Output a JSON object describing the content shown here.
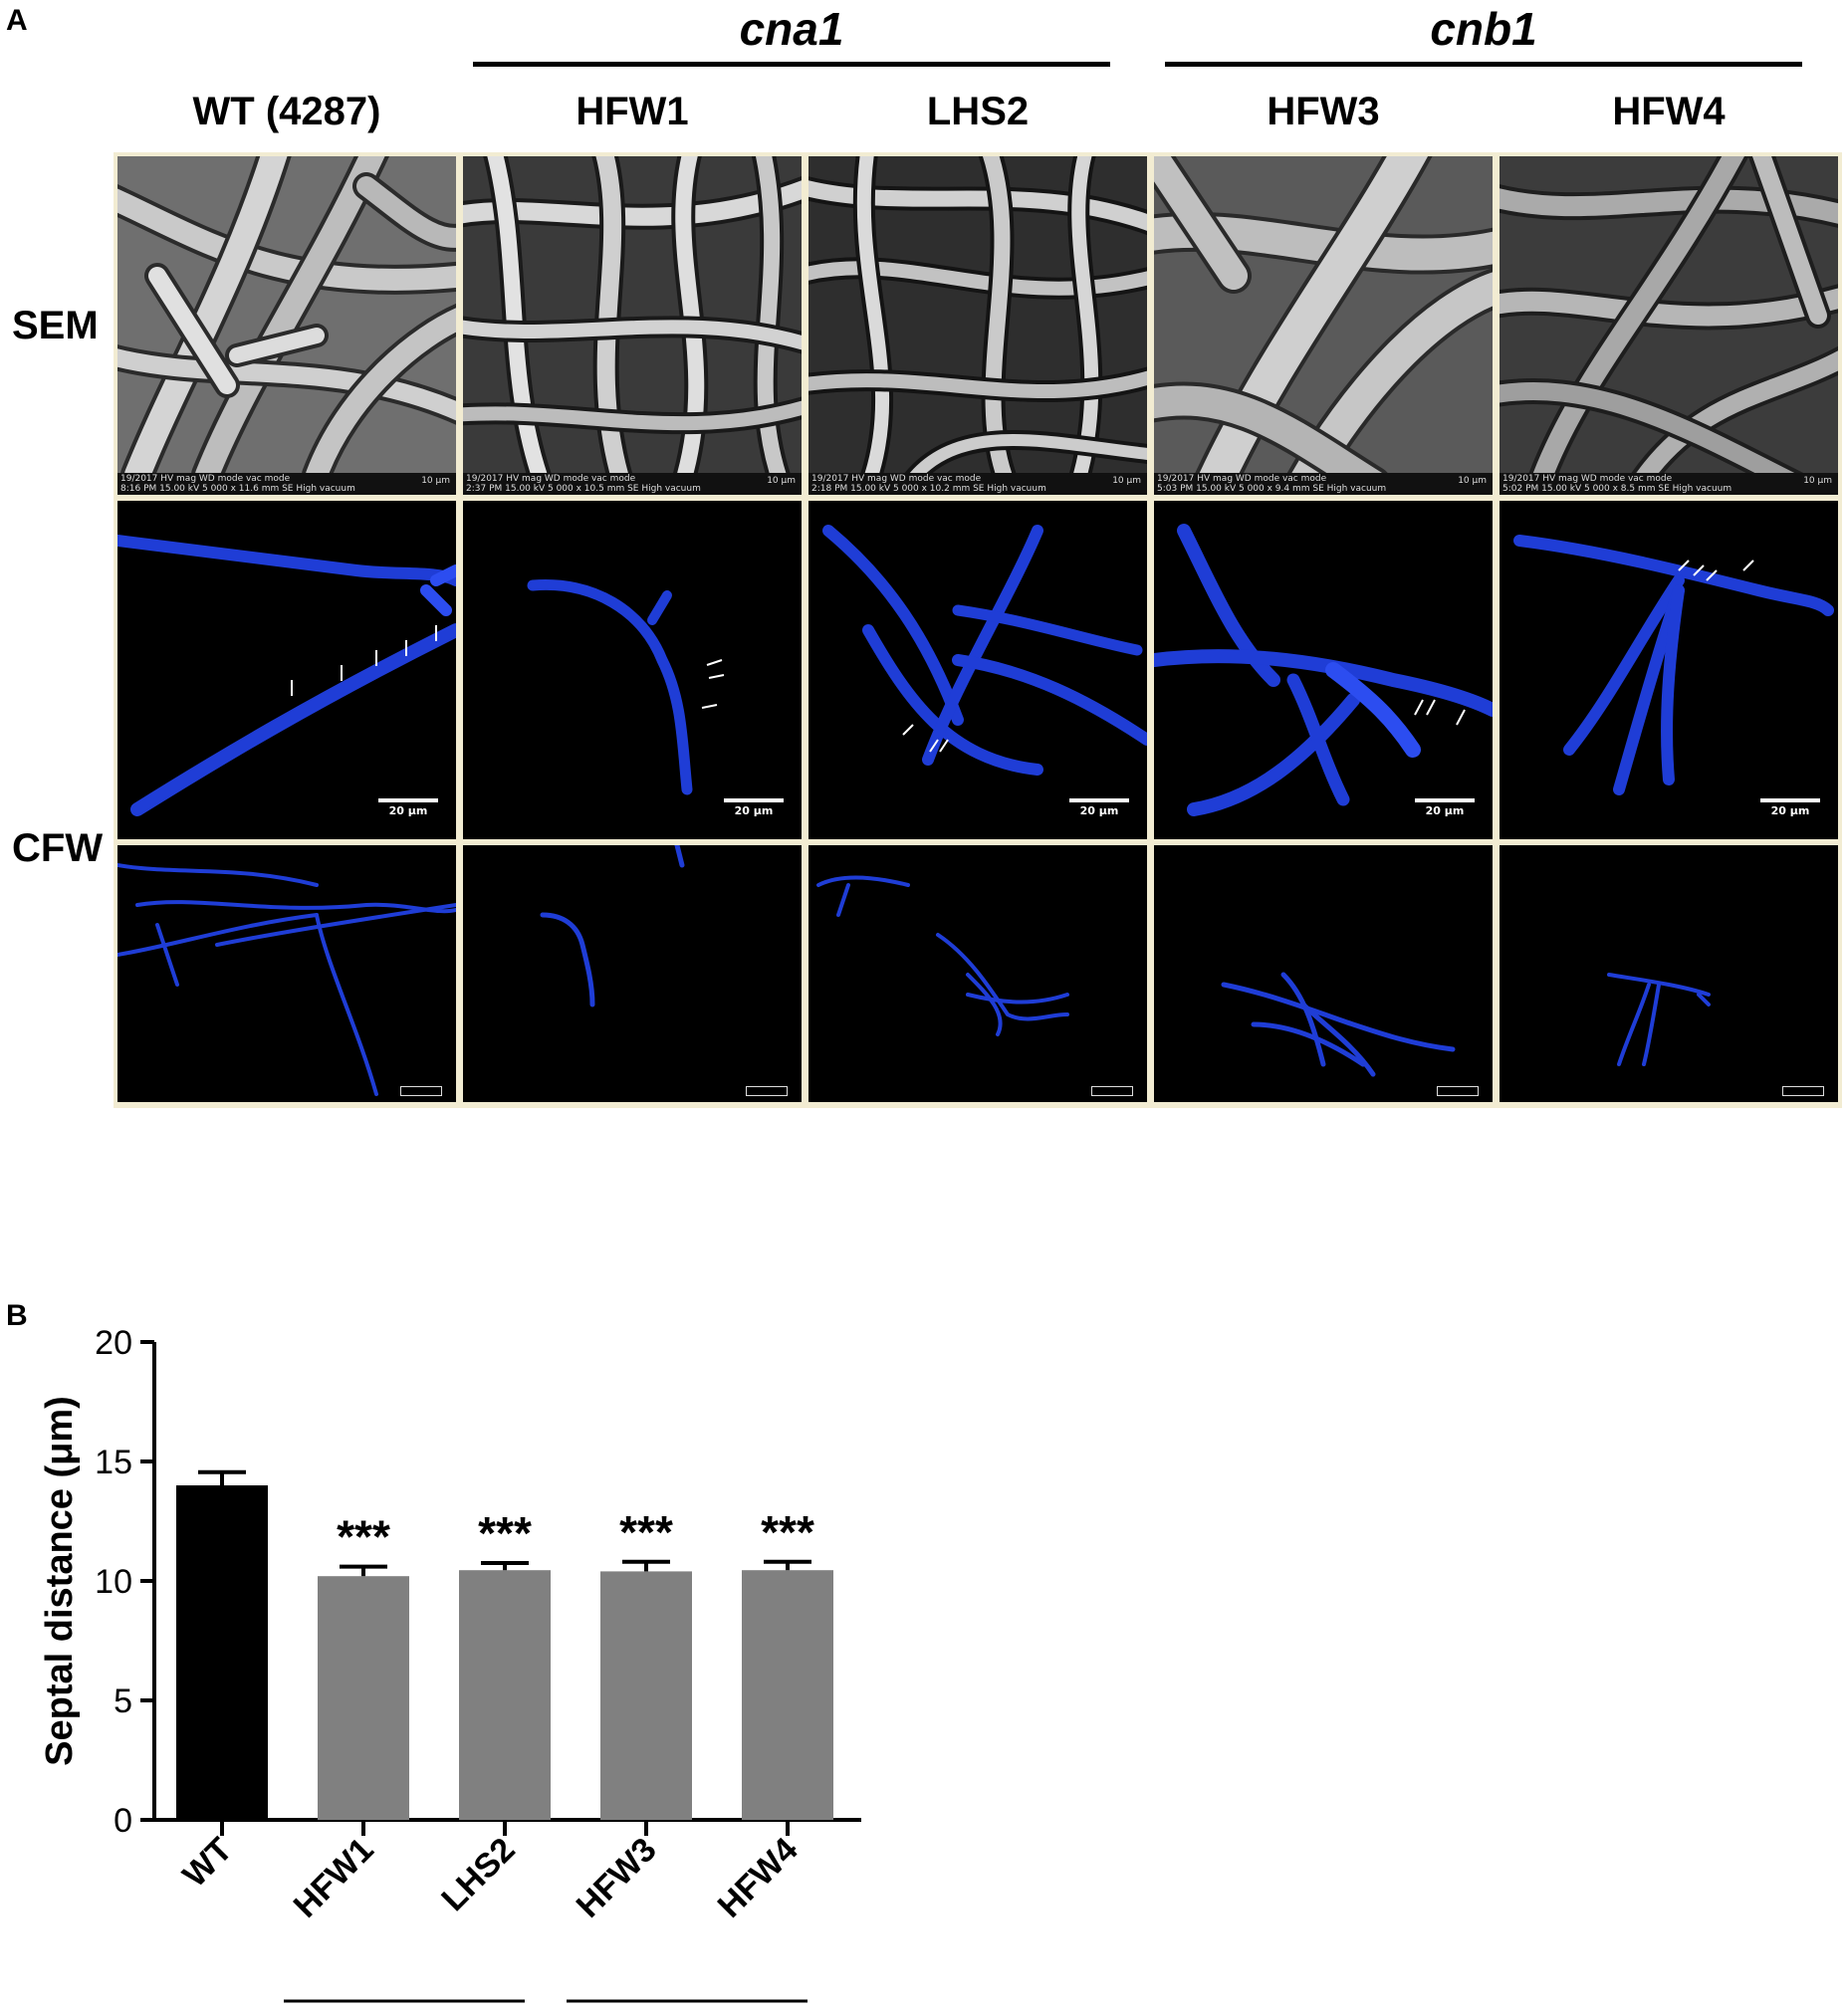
{
  "panel_a": {
    "letter": "A",
    "groups": [
      {
        "label": "cna1"
      },
      {
        "label": "cnb1"
      }
    ],
    "columns": [
      "WT (4287)",
      "HFW1",
      "LHS2",
      "HFW3",
      "HFW4"
    ],
    "rows": [
      "SEM",
      "CFW"
    ],
    "sem_info": [
      {
        "line1": "19/2017   HV      mag     WD      mode   vac mode",
        "line2": "8:16 PM  15.00 kV  5 000 x  11.6 mm  SE   High vacuum",
        "scale": "10 μm"
      },
      {
        "line1": "19/2017   HV      mag     WD      mode   vac mode",
        "line2": "2:37 PM  15.00 kV  5 000 x  10.5 mm  SE   High vacuum",
        "scale": "10 μm"
      },
      {
        "line1": "19/2017   HV      mag     WD      mode   vac mode",
        "line2": "2:18 PM  15.00 kV  5 000 x  10.2 mm  SE   High vacuum",
        "scale": "10 μm"
      },
      {
        "line1": "19/2017   HV      mag     WD      mode   vac mode",
        "line2": "5:03 PM  15.00 kV  5 000 x  9.4 mm  SE   High vacuum",
        "scale": "10 μm"
      },
      {
        "line1": "19/2017   HV      mag     WD      mode   vac mode",
        "line2": "5:02 PM  15.00 kV  5 000 x  8.5 mm  SE   High vacuum",
        "scale": "10 μm"
      }
    ],
    "cfw_scale": "20 μm"
  },
  "panel_b": {
    "letter": "B"
  },
  "chart_data": {
    "type": "bar",
    "categories": [
      "WT",
      "HFW1",
      "LHS2",
      "HFW3",
      "HFW4"
    ],
    "values": [
      14.0,
      10.2,
      10.45,
      10.4,
      10.45
    ],
    "errors": [
      0.55,
      0.4,
      0.3,
      0.4,
      0.35
    ],
    "significance": [
      "",
      "***",
      "***",
      "***",
      "***"
    ],
    "bar_colors": [
      "#000000",
      "#808080",
      "#808080",
      "#808080",
      "#808080"
    ],
    "ylabel": "Septal distance (μm)",
    "ylim": [
      0,
      20
    ],
    "yticks": [
      0,
      5,
      10,
      15,
      20
    ],
    "groups": [
      {
        "label": "cna1",
        "members": [
          "HFW1",
          "LHS2"
        ]
      },
      {
        "label": "cnb1",
        "members": [
          "HFW3",
          "HFW4"
        ]
      }
    ],
    "grid": false
  }
}
